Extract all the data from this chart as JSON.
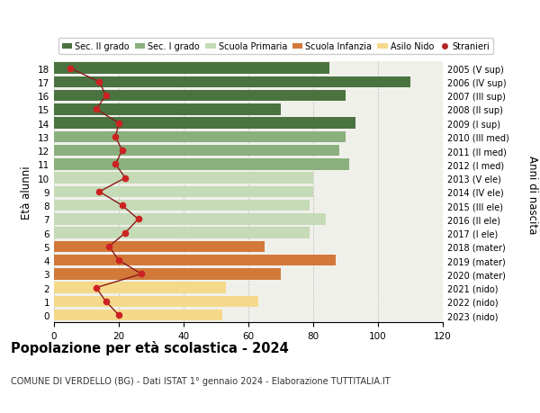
{
  "ages": [
    18,
    17,
    16,
    15,
    14,
    13,
    12,
    11,
    10,
    9,
    8,
    7,
    6,
    5,
    4,
    3,
    2,
    1,
    0
  ],
  "right_labels": [
    "2005 (V sup)",
    "2006 (IV sup)",
    "2007 (III sup)",
    "2008 (II sup)",
    "2009 (I sup)",
    "2010 (III med)",
    "2011 (II med)",
    "2012 (I med)",
    "2013 (V ele)",
    "2014 (IV ele)",
    "2015 (III ele)",
    "2016 (II ele)",
    "2017 (I ele)",
    "2018 (mater)",
    "2019 (mater)",
    "2020 (mater)",
    "2021 (nido)",
    "2022 (nido)",
    "2023 (nido)"
  ],
  "bar_values": [
    85,
    110,
    90,
    70,
    93,
    90,
    88,
    91,
    80,
    80,
    79,
    84,
    79,
    65,
    87,
    70,
    53,
    63,
    52
  ],
  "bar_colors": [
    "#4a7340",
    "#4a7340",
    "#4a7340",
    "#4a7340",
    "#4a7340",
    "#8ab07d",
    "#8ab07d",
    "#8ab07d",
    "#c5dbb7",
    "#c5dbb7",
    "#c5dbb7",
    "#c5dbb7",
    "#c5dbb7",
    "#d2793a",
    "#d2793a",
    "#d2793a",
    "#f5d98b",
    "#f5d98b",
    "#f5d98b"
  ],
  "stranieri_values": [
    5,
    14,
    16,
    13,
    20,
    19,
    21,
    19,
    22,
    14,
    21,
    26,
    22,
    17,
    20,
    27,
    13,
    16,
    20
  ],
  "legend_labels": [
    "Sec. II grado",
    "Sec. I grado",
    "Scuola Primaria",
    "Scuola Infanzia",
    "Asilo Nido",
    "Stranieri"
  ],
  "legend_colors": [
    "#4a7340",
    "#8ab07d",
    "#c5dbb7",
    "#d2793a",
    "#f5d98b",
    "#b22222"
  ],
  "title": "Popolazione per età scolastica - 2024",
  "subtitle": "COMUNE DI VERDELLO (BG) - Dati ISTAT 1° gennaio 2024 - Elaborazione TUTTITALIA.IT",
  "ylabel_left": "Età alunni",
  "ylabel_right": "Anni di nascita",
  "xlim": [
    0,
    120
  ],
  "xticks": [
    0,
    20,
    40,
    60,
    80,
    100,
    120
  ],
  "background_color": "#ffffff",
  "bar_background": "#f0f0eb"
}
